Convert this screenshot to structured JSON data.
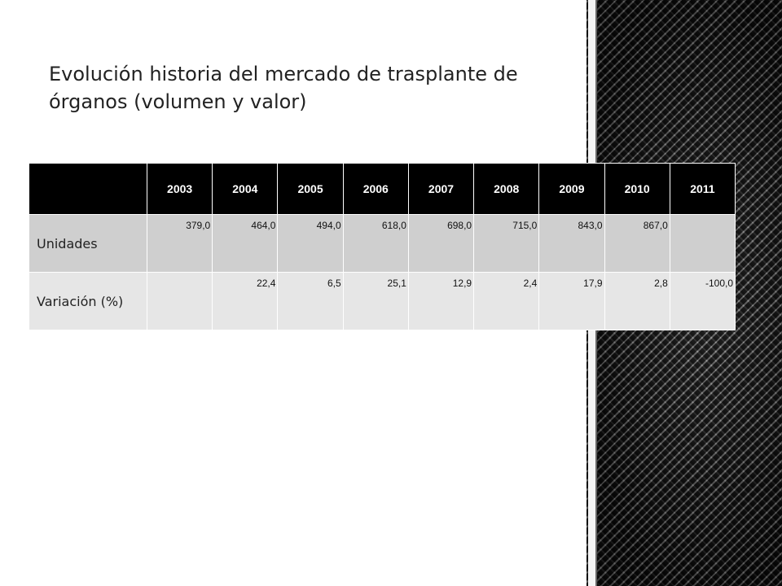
{
  "title": "Evolución historia del mercado de trasplante de órganos (volumen y valor)",
  "table": {
    "header": [
      "2003",
      "2004",
      "2005",
      "2006",
      "2007",
      "2008",
      "2009",
      "2010",
      "2011"
    ],
    "rows": [
      {
        "label": "Unidades",
        "cells": [
          "379,0",
          "464,0",
          "494,0",
          "618,0",
          "698,0",
          "715,0",
          "843,0",
          "867,0",
          null
        ]
      },
      {
        "label": "Variación (%)",
        "cells": [
          null,
          "22,4",
          "6,5",
          "25,1",
          "12,9",
          "2,4",
          "17,9",
          "2,8",
          "-100,0"
        ]
      }
    ]
  }
}
